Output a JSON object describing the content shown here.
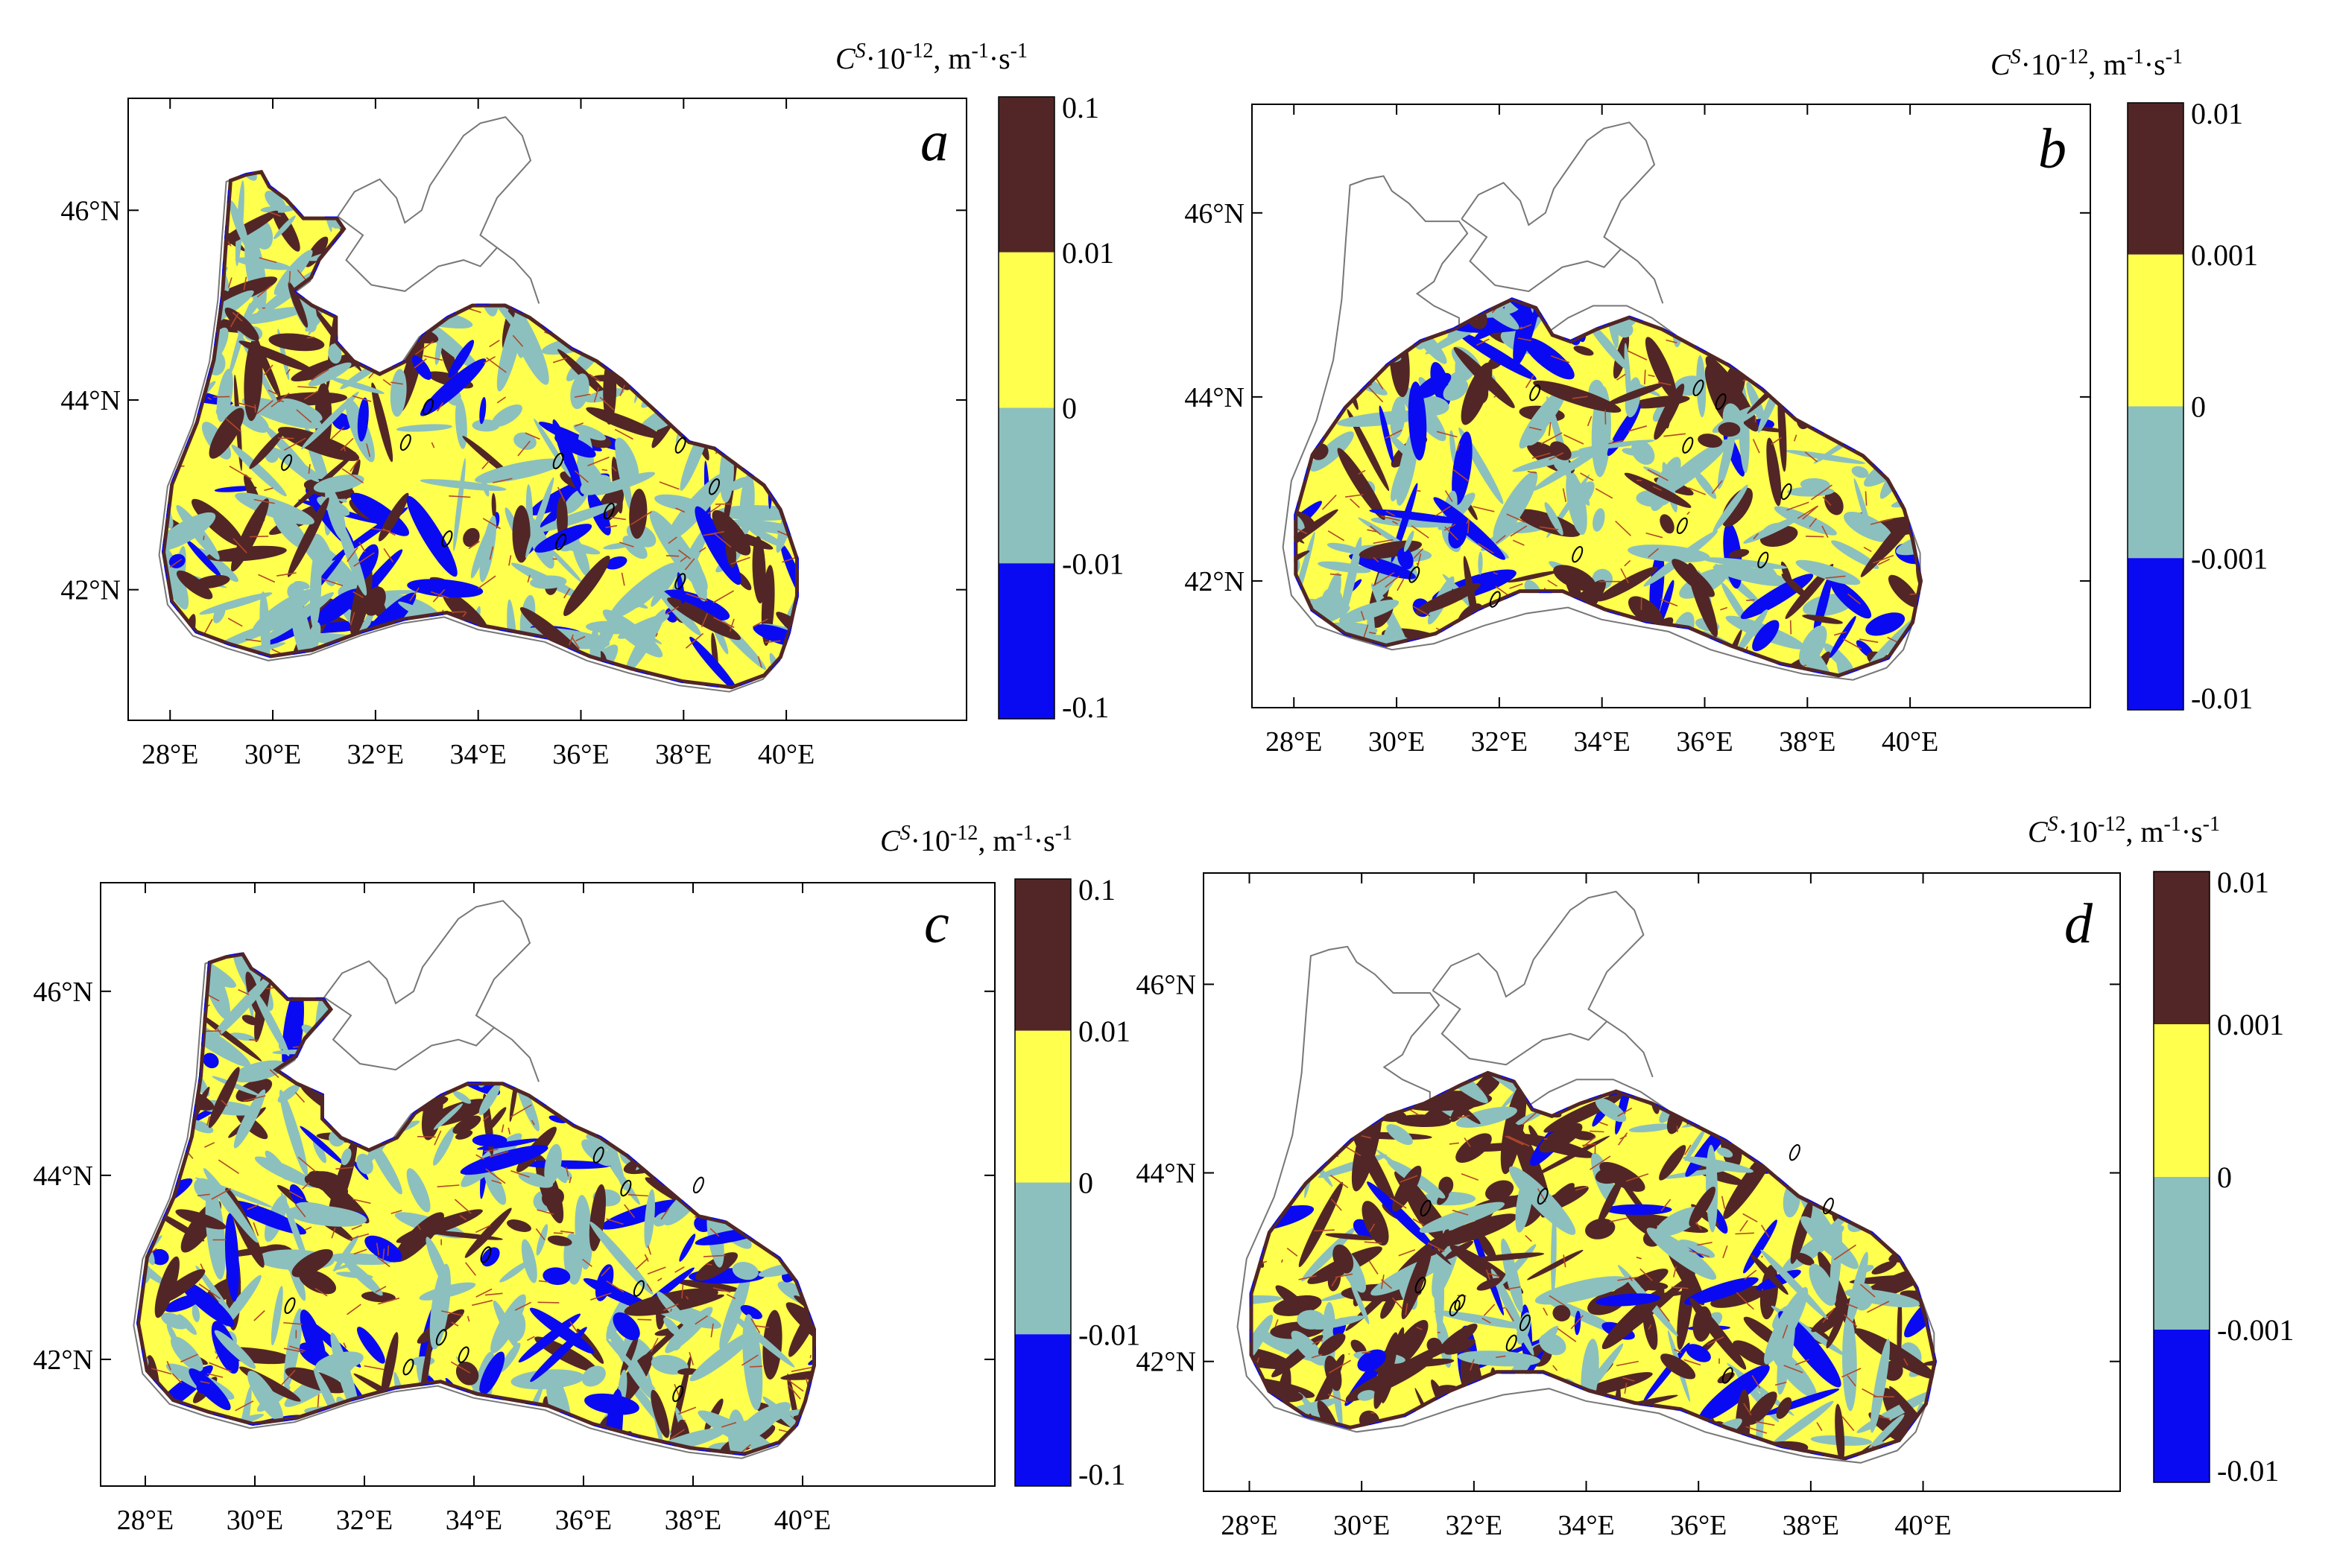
{
  "colors": {
    "dark_brown": "#522626",
    "yellow": "#ffff4d",
    "teal": "#8cc0be",
    "blue": "#0a0af2",
    "coast_line": "#777777",
    "contour_line": "#b0482a"
  },
  "panels": [
    {
      "letter": "a",
      "colorbar_title": "C^S·10^-12, m^-1·s^-1",
      "colorbar_ticks": [
        "0.1",
        "0.01",
        "0",
        "-0.01",
        "-0.1"
      ],
      "lon_ticks": [
        "28°E",
        "30°E",
        "32°E",
        "34°E",
        "36°E",
        "38°E",
        "40°E"
      ],
      "lat_ticks": [
        "46°N",
        "44°N",
        "42°N"
      ],
      "base_fill": "yellow",
      "pattern_colors": [
        "teal",
        "dark_brown",
        "blue"
      ],
      "has_nw_shelf": true
    },
    {
      "letter": "b",
      "colorbar_title": "C^S·10^-12, m^-1·s^-1",
      "colorbar_ticks": [
        "0.01",
        "0.001",
        "0",
        "-0.001",
        "-0.01"
      ],
      "lon_ticks": [
        "28°E",
        "30°E",
        "32°E",
        "34°E",
        "36°E",
        "38°E",
        "40°E"
      ],
      "lat_ticks": [
        "46°N",
        "44°N",
        "42°N"
      ],
      "base_fill": "yellow",
      "pattern_colors": [
        "teal",
        "dark_brown",
        "blue"
      ],
      "has_nw_shelf": false
    },
    {
      "letter": "c",
      "colorbar_title": "C^S·10^-12, m^-1·s^-1",
      "colorbar_ticks": [
        "0.1",
        "0.01",
        "0",
        "-0.01",
        "-0.1"
      ],
      "lon_ticks": [
        "28°E",
        "30°E",
        "32°E",
        "34°E",
        "36°E",
        "38°E",
        "40°E"
      ],
      "lat_ticks": [
        "46°N",
        "44°N",
        "42°N"
      ],
      "base_fill": "yellow",
      "pattern_colors": [
        "teal",
        "dark_brown",
        "blue"
      ],
      "has_nw_shelf": true
    },
    {
      "letter": "d",
      "colorbar_title": "C^S·10^-12, m^-1·s^-1",
      "colorbar_ticks": [
        "0.01",
        "0.001",
        "0",
        "-0.001",
        "-0.01"
      ],
      "lon_ticks": [
        "28°E",
        "30°E",
        "32°E",
        "34°E",
        "36°E",
        "38°E",
        "40°E"
      ],
      "lat_ticks": [
        "46°N",
        "44°N",
        "42°N"
      ],
      "base_fill": "yellow",
      "pattern_colors": [
        "dark_brown",
        "teal",
        "blue"
      ],
      "has_nw_shelf": false
    }
  ]
}
